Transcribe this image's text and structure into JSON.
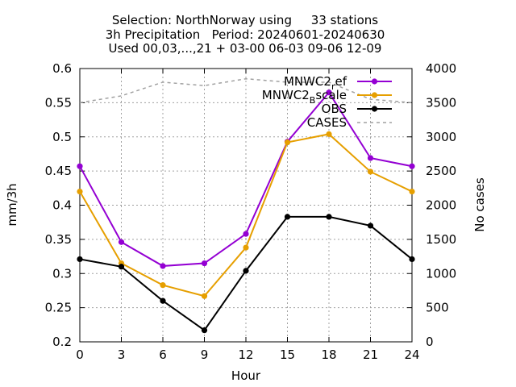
{
  "chart_data": {
    "type": "line",
    "title_lines": [
      "Selection: NorthNorway using     33 stations",
      "3h Precipitation   Period: 20240601-20240630",
      "Used 00,03,...,21 + 03-00 06-03 09-06 12-09"
    ],
    "xlabel": "Hour",
    "ylabel": "mm/3h",
    "y2label": "No cases",
    "x": [
      0,
      3,
      6,
      9,
      12,
      15,
      18,
      21,
      24
    ],
    "xticks": [
      0,
      3,
      6,
      9,
      12,
      15,
      18,
      21,
      24
    ],
    "xlim": [
      0,
      24
    ],
    "ylim": [
      0.2,
      0.6
    ],
    "yticks": [
      "0.2",
      "0.25",
      "0.3",
      "0.35",
      "0.4",
      "0.45",
      "0.5",
      "0.55",
      "0.6"
    ],
    "y2lim": [
      0,
      4000
    ],
    "y2ticks": [
      "0",
      "500",
      "1000",
      "1500",
      "2000",
      "2500",
      "3000",
      "3500",
      "4000"
    ],
    "grid": true,
    "legend_position": "top-right",
    "series": [
      {
        "name": "MNWC2_ref",
        "legend_main": "MNWC2",
        "legend_sub": "r",
        "legend_tail": "ef",
        "color": "#9400d3",
        "axis": "y",
        "values": [
          0.457,
          0.346,
          0.311,
          0.315,
          0.358,
          0.493,
          0.565,
          0.469,
          0.457
        ]
      },
      {
        "name": "MNWC2_Bscale",
        "legend_main": "MNWC2",
        "legend_sub": "B",
        "legend_tail": "scale",
        "color": "#e69f00",
        "axis": "y",
        "values": [
          0.42,
          0.315,
          0.283,
          0.267,
          0.338,
          0.492,
          0.504,
          0.449,
          0.42
        ]
      },
      {
        "name": "OBS",
        "legend_main": "OBS",
        "legend_sub": "",
        "legend_tail": "",
        "color": "#000000",
        "axis": "y",
        "values": [
          0.321,
          0.31,
          0.26,
          0.217,
          0.304,
          0.383,
          0.383,
          0.37,
          0.321
        ]
      },
      {
        "name": "CASES",
        "legend_main": "CASES",
        "legend_sub": "",
        "legend_tail": "",
        "color": "#a0a0a0",
        "axis": "y2",
        "dashed": true,
        "values": [
          3500,
          3600,
          3800,
          3750,
          3850,
          3800,
          3800,
          3550,
          3500
        ]
      }
    ]
  }
}
